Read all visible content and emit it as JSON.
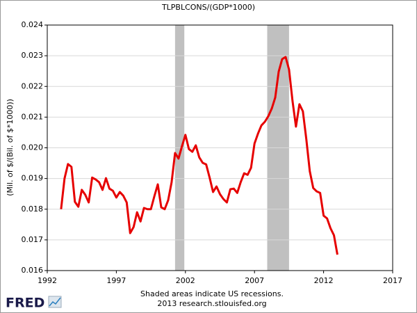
{
  "chart_data": {
    "type": "line",
    "title": "TLPBLCONS/(GDP*1000)",
    "y_label": "(Mil. of $/(Bil. of $*1000))",
    "annotations": [
      "Shaded areas indicate US recessions.",
      "2013 research.stlouisfed.org"
    ],
    "logo": "FRED",
    "x": [
      1993.0,
      1993.25,
      1993.5,
      1993.75,
      1994.0,
      1994.25,
      1994.5,
      1994.75,
      1995.0,
      1995.25,
      1995.5,
      1995.75,
      1996.0,
      1996.25,
      1996.5,
      1996.75,
      1997.0,
      1997.25,
      1997.5,
      1997.75,
      1998.0,
      1998.25,
      1998.5,
      1998.75,
      1999.0,
      1999.25,
      1999.5,
      1999.75,
      2000.0,
      2000.25,
      2000.5,
      2000.75,
      2001.0,
      2001.25,
      2001.5,
      2001.75,
      2002.0,
      2002.25,
      2002.5,
      2002.75,
      2003.0,
      2003.25,
      2003.5,
      2003.75,
      2004.0,
      2004.25,
      2004.5,
      2004.75,
      2005.0,
      2005.25,
      2005.5,
      2005.75,
      2006.0,
      2006.25,
      2006.5,
      2006.75,
      2007.0,
      2007.25,
      2007.5,
      2007.75,
      2008.0,
      2008.25,
      2008.5,
      2008.75,
      2009.0,
      2009.25,
      2009.5,
      2009.75,
      2010.0,
      2010.25,
      2010.5,
      2010.75,
      2011.0,
      2011.25,
      2011.5,
      2011.75,
      2012.0,
      2012.25,
      2012.5,
      2012.75,
      2013.0
    ],
    "series": [
      {
        "name": "TLPBLCONS/(GDP*1000)",
        "color": "#e60000",
        "values": [
          0.018,
          0.019,
          0.01947,
          0.01938,
          0.01824,
          0.01808,
          0.01863,
          0.01847,
          0.01822,
          0.01903,
          0.01897,
          0.01888,
          0.01863,
          0.01901,
          0.01867,
          0.0186,
          0.01838,
          0.01856,
          0.01844,
          0.01822,
          0.01722,
          0.01742,
          0.0179,
          0.0176,
          0.01804,
          0.018,
          0.018,
          0.01842,
          0.01881,
          0.01806,
          0.018,
          0.01829,
          0.01888,
          0.01983,
          0.01965,
          0.02005,
          0.02042,
          0.01996,
          0.01987,
          0.02008,
          0.01969,
          0.01951,
          0.01946,
          0.01903,
          0.01856,
          0.01874,
          0.01849,
          0.01833,
          0.01822,
          0.01865,
          0.01867,
          0.01853,
          0.01888,
          0.01917,
          0.01912,
          0.01935,
          0.02014,
          0.02046,
          0.02073,
          0.02085,
          0.02103,
          0.02128,
          0.02164,
          0.02248,
          0.02289,
          0.02296,
          0.02255,
          0.02153,
          0.02069,
          0.02142,
          0.02119,
          0.02028,
          0.01924,
          0.01869,
          0.01858,
          0.01853,
          0.01779,
          0.0177,
          0.01738,
          0.01715,
          0.01652
        ]
      }
    ],
    "recessions": [
      [
        2001.25,
        2001.92
      ],
      [
        2007.92,
        2009.5
      ]
    ],
    "recession_color": "#c0c0c0",
    "xlim": [
      1992,
      2017
    ],
    "xticks": [
      1992,
      1997,
      2002,
      2007,
      2012,
      2017
    ],
    "ylim": [
      0.016,
      0.024
    ],
    "yticks": [
      0.016,
      0.017,
      0.018,
      0.019,
      {
        "value": 0.02,
        "label": "0.020"
      },
      0.021,
      0.022,
      0.023,
      0.024
    ],
    "grid": true
  }
}
